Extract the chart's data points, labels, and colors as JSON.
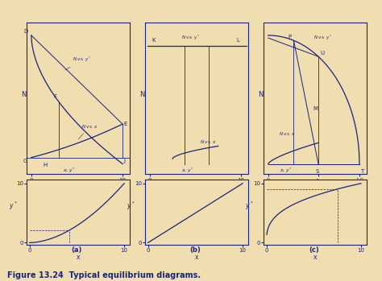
{
  "bg_color": "#f0deb0",
  "line_color": "#1a237e",
  "fig_caption": "Figure 13.24  Typical equilibrium diagrams.",
  "fig_caption_fontsize": 7,
  "subplot_labels": [
    "(a)",
    "(b)",
    "(c)"
  ],
  "text_color": "#1a237e"
}
